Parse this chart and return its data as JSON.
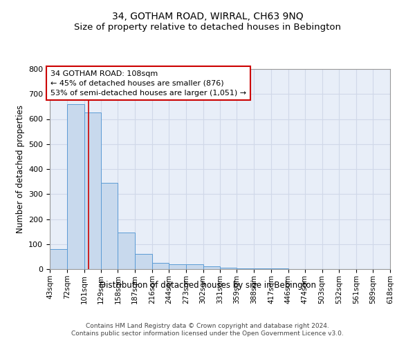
{
  "title": "34, GOTHAM ROAD, WIRRAL, CH63 9NQ",
  "subtitle": "Size of property relative to detached houses in Bebington",
  "xlabel": "Distribution of detached houses by size in Bebington",
  "ylabel": "Number of detached properties",
  "bin_edges": [
    43,
    72,
    101,
    129,
    158,
    187,
    216,
    244,
    273,
    302,
    331,
    359,
    388,
    417,
    446,
    474,
    503,
    532,
    561,
    589,
    618
  ],
  "bar_heights": [
    80,
    660,
    625,
    345,
    145,
    60,
    25,
    18,
    18,
    12,
    5,
    3,
    2,
    2,
    1,
    1,
    0,
    0,
    0,
    0
  ],
  "bar_facecolor": "#c8d9ed",
  "bar_edgecolor": "#5b9bd5",
  "property_size": 108,
  "annotation_text": "34 GOTHAM ROAD: 108sqm\n← 45% of detached houses are smaller (876)\n53% of semi-detached houses are larger (1,051) →",
  "annotation_box_color": "#ffffff",
  "annotation_box_edgecolor": "#cc0000",
  "vline_color": "#cc0000",
  "ylim": [
    0,
    800
  ],
  "yticks": [
    0,
    100,
    200,
    300,
    400,
    500,
    600,
    700,
    800
  ],
  "tick_labels": [
    "43sqm",
    "72sqm",
    "101sqm",
    "129sqm",
    "158sqm",
    "187sqm",
    "216sqm",
    "244sqm",
    "273sqm",
    "302sqm",
    "331sqm",
    "359sqm",
    "388sqm",
    "417sqm",
    "446sqm",
    "474sqm",
    "503sqm",
    "532sqm",
    "561sqm",
    "589sqm",
    "618sqm"
  ],
  "footer_text": "Contains HM Land Registry data © Crown copyright and database right 2024.\nContains public sector information licensed under the Open Government Licence v3.0.",
  "title_fontsize": 10,
  "subtitle_fontsize": 9.5,
  "xlabel_fontsize": 8.5,
  "ylabel_fontsize": 8.5,
  "grid_color": "#d0d8e8",
  "background_color": "#e8eef8"
}
